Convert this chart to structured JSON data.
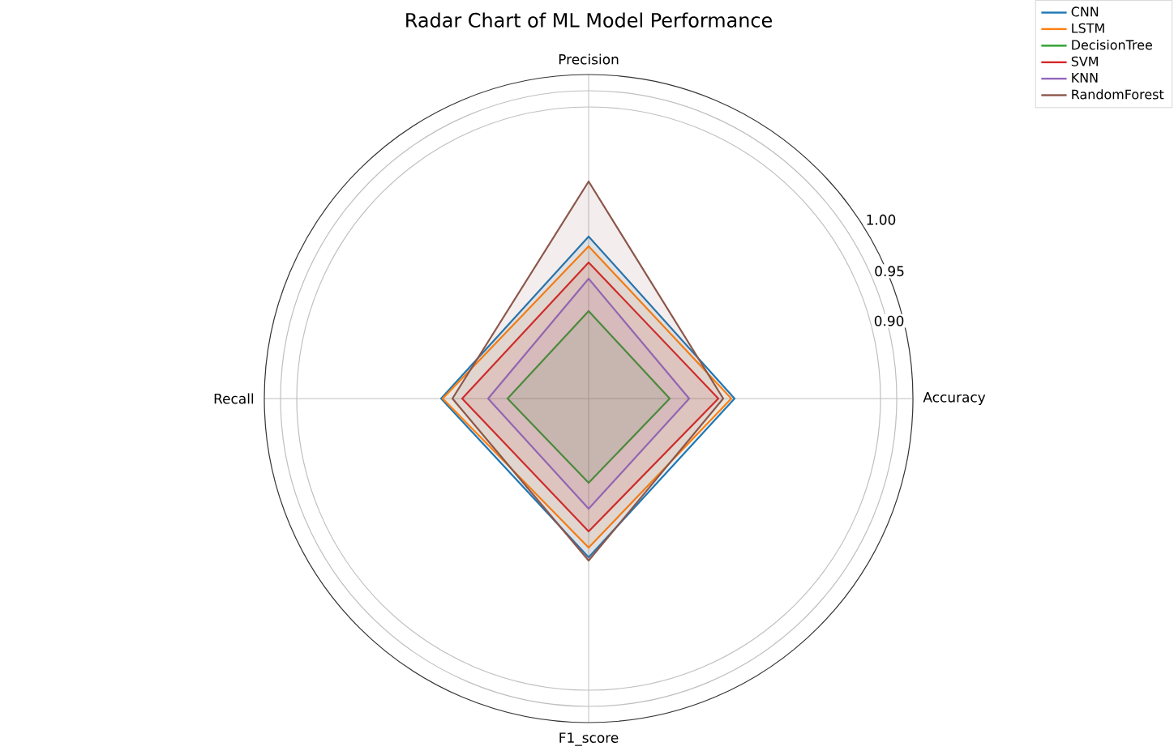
{
  "chart_data": {
    "type": "radar",
    "title": "Radar Chart of ML Model Performance",
    "categories": [
      "Precision",
      "Accuracy",
      "F1_score",
      "Recall"
    ],
    "ylim": [
      0,
      1
    ],
    "yticks": [
      {
        "value": 0.9,
        "label": "0.90"
      },
      {
        "value": 0.95,
        "label": "0.95"
      },
      {
        "value": 1.0,
        "label": "1.00"
      }
    ],
    "grid": true,
    "legend": "top right",
    "series": [
      {
        "name": "CNN",
        "color": "#1f77b4",
        "values": [
          0.5,
          0.45,
          0.49,
          0.455
        ]
      },
      {
        "name": "LSTM",
        "color": "#ff7f0e",
        "values": [
          0.47,
          0.44,
          0.46,
          0.45
        ]
      },
      {
        "name": "DecisionTree",
        "color": "#2ca02c",
        "values": [
          0.27,
          0.25,
          0.26,
          0.25
        ]
      },
      {
        "name": "SVM",
        "color": "#d62728",
        "values": [
          0.42,
          0.4,
          0.41,
          0.39
        ]
      },
      {
        "name": "KNN",
        "color": "#9467bd",
        "values": [
          0.37,
          0.31,
          0.34,
          0.31
        ]
      },
      {
        "name": "RandomForest",
        "color": "#8c564b",
        "values": [
          0.67,
          0.415,
          0.5,
          0.42
        ]
      }
    ]
  }
}
